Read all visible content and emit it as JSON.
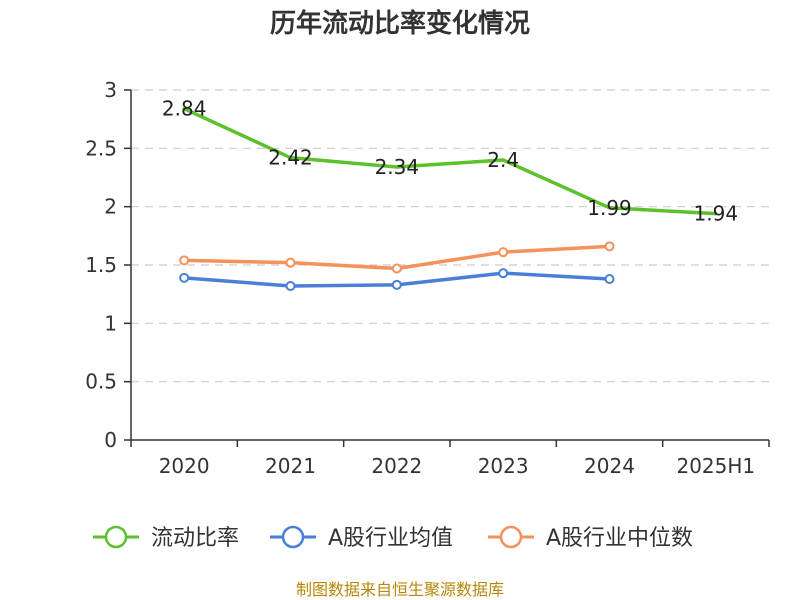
{
  "chart_data": {
    "type": "line",
    "title": "历年流动比率变化情况",
    "categories": [
      "2020",
      "2021",
      "2022",
      "2023",
      "2024",
      "2025H1"
    ],
    "ylim": [
      0,
      3
    ],
    "yticks": [
      "0",
      "0.5",
      "1",
      "1.5",
      "2",
      "2.5",
      "3"
    ],
    "grid": true,
    "legend_position": "bottom",
    "series": [
      {
        "name": "流动比率",
        "color": "#5cc12b",
        "values": [
          2.84,
          2.42,
          2.34,
          2.4,
          1.99,
          1.94
        ],
        "labels": [
          "2.84",
          "2.42",
          "2.34",
          "2.4",
          "1.99",
          "1.94"
        ],
        "show_markers": false
      },
      {
        "name": "A股行业均值",
        "color": "#4a7fd8",
        "values": [
          1.39,
          1.32,
          1.33,
          1.43,
          1.38,
          null
        ],
        "show_markers": true
      },
      {
        "name": "A股行业中位数",
        "color": "#f5915a",
        "values": [
          1.54,
          1.52,
          1.47,
          1.61,
          1.66,
          null
        ],
        "show_markers": true
      }
    ]
  },
  "footer": {
    "source": "制图数据来自恒生聚源数据库"
  }
}
